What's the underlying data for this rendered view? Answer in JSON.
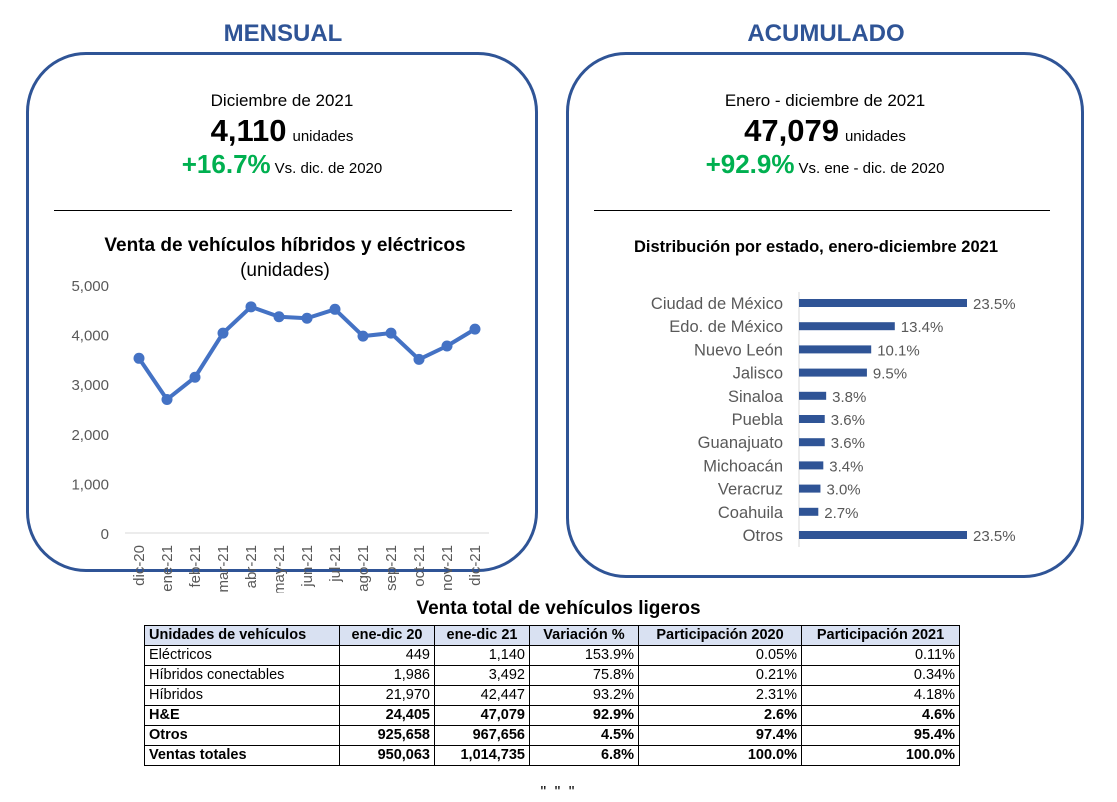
{
  "mensual": {
    "section_title": "MENSUAL",
    "period": "Diciembre de 2021",
    "units_value": "4,110",
    "units_label": "unidades",
    "change_pct": "+16.7%",
    "change_label": "Vs. dic. de 2020"
  },
  "acumulado": {
    "section_title": "ACUMULADO",
    "period": "Enero - diciembre de 2021",
    "units_value": "47,079",
    "units_label": "unidades",
    "change_pct": "+92.9%",
    "change_label": "Vs. ene - dic. de 2020"
  },
  "chart_data": [
    {
      "type": "line",
      "title": "Venta de vehículos híbridos y eléctricos",
      "subtitle": "(unidades)",
      "categories": [
        "dic-20",
        "ene-21",
        "feb-21",
        "mar-21",
        "abr-21",
        "may-21",
        "jun-21",
        "jul-21",
        "ago-21",
        "sep-21",
        "oct-21",
        "nov-21",
        "dic-21"
      ],
      "series": [
        {
          "values": [
            3522,
            2692,
            3140,
            4030,
            4560,
            4360,
            4330,
            4510,
            3970,
            4030,
            3500,
            3770,
            4110
          ]
        }
      ],
      "yticks": [
        "0",
        "1,000",
        "2,000",
        "3,000",
        "4,000",
        "5,000"
      ],
      "ylim": [
        0,
        5000
      ],
      "grid": false,
      "color": "#4472c4"
    },
    {
      "type": "bar",
      "orientation": "horizontal",
      "title": "Distribución por estado, enero-diciembre 2021",
      "categories": [
        "Ciudad de México",
        "Edo. de México",
        "Nuevo León",
        "Jalisco",
        "Sinaloa",
        "Puebla",
        "Guanajuato",
        "Michoacán",
        "Veracruz",
        "Coahuila",
        "Otros"
      ],
      "values": [
        23.5,
        13.4,
        10.1,
        9.5,
        3.8,
        3.6,
        3.6,
        3.4,
        3.0,
        2.7,
        23.5
      ],
      "labels": [
        "23.5%",
        "13.4%",
        "10.1%",
        "9.5%",
        "3.8%",
        "3.6%",
        "3.6%",
        "3.4%",
        "3.0%",
        "2.7%",
        "23.5%"
      ],
      "color": "#2f5496"
    }
  ],
  "table": {
    "title": "Venta total de vehículos ligeros",
    "headers": [
      "Unidades de vehículos",
      "ene-dic 20",
      "ene-dic 21",
      "Variación %",
      "Participación 2020",
      "Participación 2021"
    ],
    "rows": [
      {
        "bold": false,
        "cells": [
          "Eléctricos",
          "449",
          "1,140",
          "153.9%",
          "0.05%",
          "0.11%"
        ]
      },
      {
        "bold": false,
        "cells": [
          "Híbridos conectables",
          "1,986",
          "3,492",
          "75.8%",
          "0.21%",
          "0.34%"
        ]
      },
      {
        "bold": false,
        "cells": [
          "Híbridos",
          "21,970",
          "42,447",
          "93.2%",
          "2.31%",
          "4.18%"
        ]
      },
      {
        "bold": true,
        "cells": [
          "H&E",
          "24,405",
          "47,079",
          "92.9%",
          "2.6%",
          "4.6%"
        ]
      },
      {
        "bold": true,
        "cells": [
          "Otros",
          "925,658",
          "967,656",
          "4.5%",
          "97.4%",
          "95.4%"
        ]
      },
      {
        "bold": true,
        "cells": [
          "Ventas totales",
          "950,063",
          "1,014,735",
          "6.8%",
          "100.0%",
          "100.0%"
        ]
      }
    ]
  },
  "footer_mark": "\" \" \""
}
